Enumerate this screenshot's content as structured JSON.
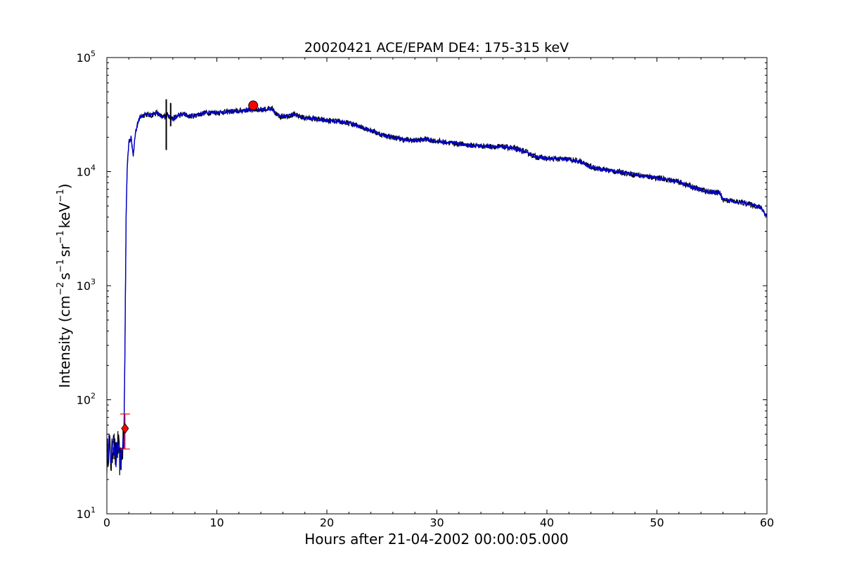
{
  "chart_data": {
    "type": "line",
    "title": "20020421 ACE/EPAM DE4: 175-315 keV",
    "xlabel": "Hours after 21-04-2002 00:00:05.000",
    "ylabel": {
      "prefix": "Intensity (cm",
      "exp1": "−2",
      "mid1": "s",
      "exp2": "−1",
      "mid2": "sr",
      "exp3": "−1",
      "mid3": "keV",
      "exp4": "−1",
      "suffix": ")"
    },
    "xlim": [
      0,
      60
    ],
    "ylim": [
      10,
      100000
    ],
    "yscale": "log",
    "grid": false,
    "x_ticks": [
      "0",
      "10",
      "20",
      "30",
      "40",
      "50",
      "60"
    ],
    "y_ticks": [
      {
        "base": "10",
        "exp": "1"
      },
      {
        "base": "10",
        "exp": "2"
      },
      {
        "base": "10",
        "exp": "3"
      },
      {
        "base": "10",
        "exp": "4"
      },
      {
        "base": "10",
        "exp": "5"
      }
    ],
    "series": [
      {
        "color": "#0000cc",
        "points": [
          [
            0.0,
            30
          ],
          [
            0.2,
            42
          ],
          [
            0.4,
            28
          ],
          [
            0.6,
            45
          ],
          [
            0.8,
            30
          ],
          [
            1.0,
            40
          ],
          [
            1.2,
            28
          ],
          [
            1.4,
            36
          ],
          [
            1.55,
            45
          ],
          [
            1.65,
            300
          ],
          [
            1.75,
            4000
          ],
          [
            1.85,
            11000
          ],
          [
            2.0,
            18000
          ],
          [
            2.2,
            20000
          ],
          [
            2.4,
            14000
          ],
          [
            2.6,
            22000
          ],
          [
            2.8,
            26000
          ],
          [
            3.0,
            30000
          ],
          [
            3.5,
            32000
          ],
          [
            4.0,
            31000
          ],
          [
            4.5,
            33000
          ],
          [
            5.0,
            30000
          ],
          [
            5.5,
            31500
          ],
          [
            6.0,
            29000
          ],
          [
            6.5,
            31000
          ],
          [
            7.0,
            32000
          ],
          [
            7.5,
            30500
          ],
          [
            8.0,
            31000
          ],
          [
            9.0,
            33000
          ],
          [
            10.0,
            33000
          ],
          [
            11.0,
            33500
          ],
          [
            12.0,
            34000
          ],
          [
            13.0,
            35000
          ],
          [
            14.0,
            35000
          ],
          [
            15.0,
            35500
          ],
          [
            15.5,
            31000
          ],
          [
            16.0,
            30500
          ],
          [
            17.0,
            31500
          ],
          [
            18.0,
            29500
          ],
          [
            19.0,
            29000
          ],
          [
            20.0,
            28000
          ],
          [
            21.0,
            27500
          ],
          [
            22.0,
            26500
          ],
          [
            23.0,
            25000
          ],
          [
            24.0,
            23000
          ],
          [
            25.0,
            21000
          ],
          [
            26.0,
            20000
          ],
          [
            27.0,
            19000
          ],
          [
            28.0,
            18800
          ],
          [
            29.0,
            19200
          ],
          [
            30.0,
            18500
          ],
          [
            31.0,
            18000
          ],
          [
            32.0,
            17500
          ],
          [
            33.0,
            17000
          ],
          [
            34.0,
            16800
          ],
          [
            35.0,
            16600
          ],
          [
            36.0,
            16500
          ],
          [
            37.0,
            16000
          ],
          [
            38.0,
            15000
          ],
          [
            39.0,
            13500
          ],
          [
            40.0,
            13000
          ],
          [
            41.0,
            12900
          ],
          [
            42.0,
            12800
          ],
          [
            43.0,
            12300
          ],
          [
            44.0,
            11000
          ],
          [
            45.0,
            10500
          ],
          [
            46.0,
            10100
          ],
          [
            47.0,
            9800
          ],
          [
            48.0,
            9400
          ],
          [
            49.0,
            9100
          ],
          [
            50.0,
            8800
          ],
          [
            51.0,
            8500
          ],
          [
            52.0,
            8100
          ],
          [
            53.0,
            7500
          ],
          [
            54.0,
            6900
          ],
          [
            55.0,
            6600
          ],
          [
            55.7,
            6500
          ],
          [
            56.0,
            5700
          ],
          [
            57.0,
            5500
          ],
          [
            58.0,
            5300
          ],
          [
            59.0,
            5000
          ],
          [
            59.5,
            4800
          ],
          [
            60.0,
            4000
          ]
        ]
      }
    ],
    "error_bars": [
      {
        "x": 5.4,
        "y_low": 15500,
        "y_high": 43000,
        "color": "#000000"
      },
      {
        "x": 5.8,
        "y_low": 25000,
        "y_high": 40000,
        "color": "#000000"
      }
    ],
    "markers": [
      {
        "shape": "circle",
        "x": 13.3,
        "y": 38000,
        "color": "#ff0000"
      },
      {
        "shape": "diamond",
        "x": 1.65,
        "y": 56,
        "color": "#ff0000",
        "y_low": 37,
        "y_high": 75
      }
    ]
  }
}
